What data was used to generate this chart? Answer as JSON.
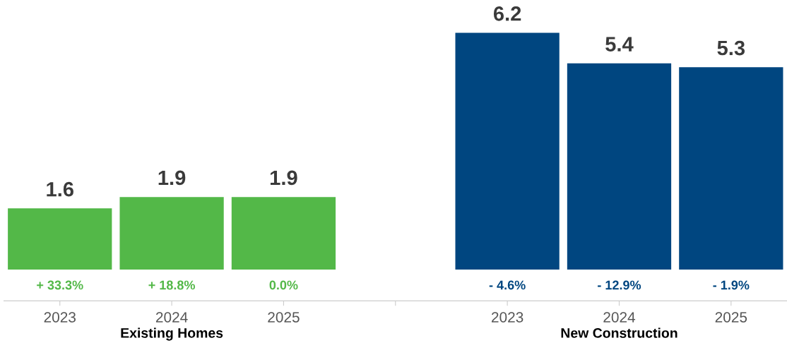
{
  "chart_data": {
    "type": "bar",
    "categories": [
      "2023",
      "2024",
      "2025",
      null,
      "2023",
      "2024",
      "2025"
    ],
    "values": [
      1.6,
      1.9,
      1.9,
      null,
      6.2,
      5.4,
      5.3
    ],
    "colors": [
      "#53b848",
      "#53b848",
      "#53b848",
      null,
      "#004680",
      "#004680",
      "#004680"
    ],
    "data_labels": true,
    "annotations": [
      "+ 33.3%",
      "+ 18.8%",
      "0.0%",
      "- 4.6%",
      "- 12.9%",
      "- 1.9%",
      "Existing Homes",
      "New Construction"
    ],
    "grid": false,
    "legend": false
  }
}
